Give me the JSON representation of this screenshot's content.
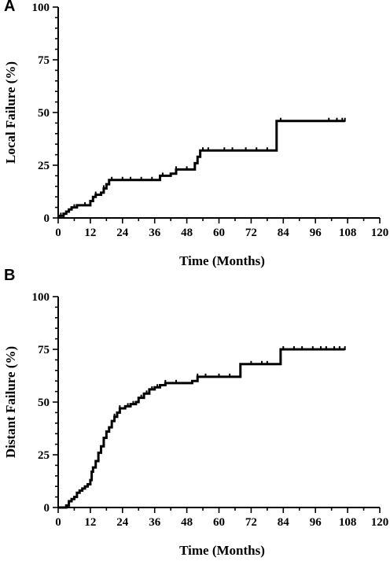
{
  "chart_data": [
    {
      "panel_label": "A",
      "type": "line",
      "step": true,
      "xlabel": "Time (Months)",
      "ylabel": "Local Failure (%)",
      "xlim": [
        0,
        120
      ],
      "ylim": [
        0,
        100
      ],
      "x_ticks": [
        0,
        12,
        24,
        36,
        48,
        60,
        72,
        84,
        96,
        108,
        120
      ],
      "y_ticks": [
        0,
        25,
        50,
        75,
        100
      ],
      "grid": false,
      "series": [
        {
          "color": "#000000",
          "points": [
            [
              0,
              1
            ],
            [
              2,
              2
            ],
            [
              3,
              3
            ],
            [
              4,
              4
            ],
            [
              5,
              5
            ],
            [
              7,
              6
            ],
            [
              11,
              6
            ],
            [
              12,
              8
            ],
            [
              13,
              10
            ],
            [
              14,
              11
            ],
            [
              16,
              12
            ],
            [
              17,
              14
            ],
            [
              18,
              16
            ],
            [
              19,
              18
            ],
            [
              22,
              18
            ],
            [
              37,
              18
            ],
            [
              38,
              20
            ],
            [
              42,
              21
            ],
            [
              44,
              23
            ],
            [
              50,
              23
            ],
            [
              51,
              26
            ],
            [
              52,
              29
            ],
            [
              53,
              32
            ],
            [
              81,
              32
            ],
            [
              81.5,
              46
            ],
            [
              107,
              46
            ]
          ],
          "censor_x": [
            1,
            6,
            10,
            14,
            17,
            20,
            24,
            27,
            31,
            35,
            39,
            44,
            48,
            54,
            56,
            62,
            65,
            70,
            74,
            78,
            83,
            101,
            104,
            106,
            107
          ]
        }
      ]
    },
    {
      "panel_label": "B",
      "type": "line",
      "step": true,
      "xlabel": "Time (Months)",
      "ylabel": "Distant Failure (%)",
      "xlim": [
        0,
        120
      ],
      "ylim": [
        0,
        100
      ],
      "x_ticks": [
        0,
        12,
        24,
        36,
        48,
        60,
        72,
        84,
        96,
        108,
        120
      ],
      "y_ticks": [
        0,
        25,
        50,
        75,
        100
      ],
      "grid": false,
      "series": [
        {
          "color": "#000000",
          "points": [
            [
              0,
              0
            ],
            [
              3,
              1
            ],
            [
              4,
              3
            ],
            [
              5,
              4
            ],
            [
              6,
              5
            ],
            [
              7,
              7
            ],
            [
              8,
              8
            ],
            [
              9,
              9
            ],
            [
              10,
              10
            ],
            [
              11,
              11
            ],
            [
              12,
              13
            ],
            [
              12.5,
              17
            ],
            [
              13,
              19
            ],
            [
              14,
              22
            ],
            [
              15,
              26
            ],
            [
              16,
              29
            ],
            [
              17,
              33
            ],
            [
              18,
              36
            ],
            [
              19,
              38
            ],
            [
              20,
              41
            ],
            [
              21,
              43
            ],
            [
              22,
              45
            ],
            [
              23,
              47
            ],
            [
              25,
              48
            ],
            [
              27,
              49
            ],
            [
              29,
              50
            ],
            [
              30,
              52
            ],
            [
              32,
              54
            ],
            [
              34,
              56
            ],
            [
              36,
              57
            ],
            [
              38,
              58
            ],
            [
              40,
              59
            ],
            [
              48,
              59
            ],
            [
              50,
              60
            ],
            [
              52,
              62
            ],
            [
              67,
              62
            ],
            [
              68,
              68
            ],
            [
              82,
              68
            ],
            [
              83,
              75
            ],
            [
              107,
              75
            ]
          ],
          "censor_x": [
            21,
            23,
            26,
            28,
            31,
            33,
            35,
            37,
            40,
            44,
            52,
            55,
            60,
            64,
            72,
            76,
            78,
            84,
            88,
            91,
            95,
            98,
            100,
            103,
            105,
            107
          ]
        }
      ]
    }
  ]
}
